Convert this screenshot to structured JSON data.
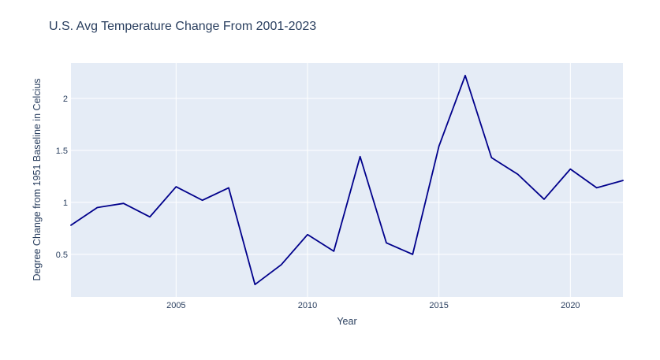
{
  "chart_data": {
    "type": "line",
    "title": "U.S. Avg Temperature Change From 2001-2023",
    "xlabel": "Year",
    "ylabel": "Degree Change from 1951 Baseline in Celcius",
    "x": [
      2001,
      2002,
      2003,
      2004,
      2005,
      2006,
      2007,
      2008,
      2009,
      2010,
      2011,
      2012,
      2013,
      2014,
      2015,
      2016,
      2017,
      2018,
      2019,
      2020,
      2021,
      2022
    ],
    "series": [
      {
        "values": [
          0.78,
          0.95,
          0.99,
          0.86,
          1.15,
          1.02,
          1.14,
          0.21,
          0.4,
          0.69,
          0.53,
          1.44,
          0.61,
          0.5,
          1.54,
          2.22,
          1.43,
          1.27,
          1.03,
          1.32,
          1.14,
          1.21
        ]
      }
    ],
    "xlim": [
      2001,
      2022
    ],
    "ylim": [
      0.09,
      2.34
    ],
    "x_ticks": [
      2005,
      2010,
      2015,
      2020
    ],
    "x_tick_labels": [
      "2005",
      "2010",
      "2015",
      "2020"
    ],
    "y_ticks": [
      0.5,
      1,
      1.5,
      2
    ],
    "y_tick_labels": [
      "0.5",
      "1",
      "1.5",
      "2"
    ],
    "grid": true,
    "colors": {
      "line": "#00008b",
      "plot_background": "#e5ecf6",
      "grid": "#ffffff",
      "text": "#2a3f5f",
      "paper": "#ffffff"
    }
  }
}
